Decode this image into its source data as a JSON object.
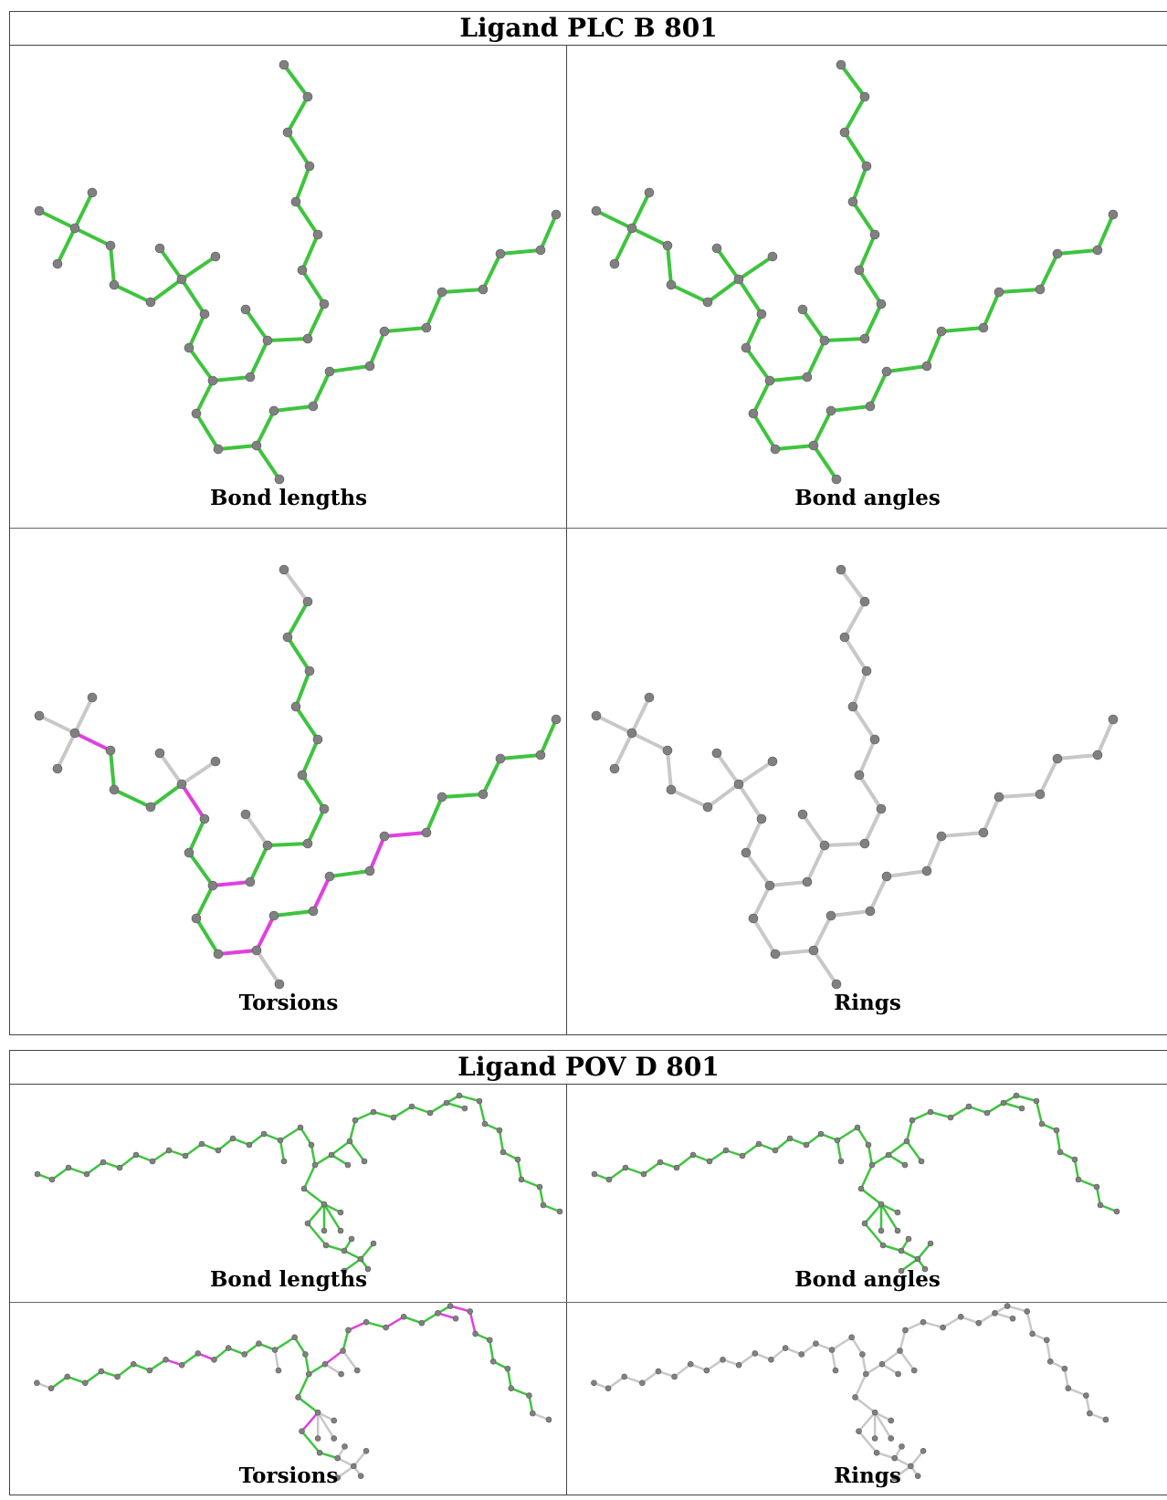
{
  "tables": [
    {
      "title": "Ligand PLC B 801",
      "panels": [
        {
          "caption": "Bond lengths",
          "style": "green"
        },
        {
          "caption": "Bond angles",
          "style": "green"
        },
        {
          "caption": "Torsions",
          "style": "torsion"
        },
        {
          "caption": "Rings",
          "style": "grey"
        }
      ]
    },
    {
      "title": "Ligand POV D 801",
      "panels": [
        {
          "caption": "Bond lengths",
          "style": "green"
        },
        {
          "caption": "Bond angles",
          "style": "green"
        },
        {
          "caption": "Torsions",
          "style": "torsion"
        },
        {
          "caption": "Rings",
          "style": "grey"
        }
      ]
    }
  ],
  "colors": {
    "bond_green": "#3ec43e",
    "bond_grey": "#c8c8c8",
    "bond_magenta": "#e040e0",
    "atom": "#808080"
  }
}
